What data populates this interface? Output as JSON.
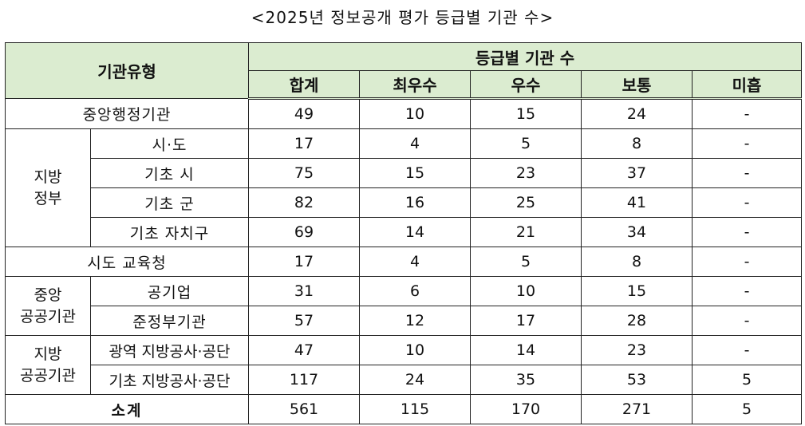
{
  "title": "<2025년 정보공개 평가 등급별 기관 수>",
  "header": {
    "type_col": "기관유형",
    "group_col": "등급별 기관 수",
    "grades": [
      "합계",
      "최우수",
      "우수",
      "보통",
      "미흡"
    ]
  },
  "rows": {
    "central_admin": {
      "label": "중앙행정기관",
      "values": [
        "49",
        "10",
        "15",
        "24",
        "-"
      ]
    },
    "local_gov": {
      "group_label": "지방\n정부",
      "items": [
        {
          "label": "시·도",
          "values": [
            "17",
            "4",
            "5",
            "8",
            "-"
          ]
        },
        {
          "label": "기초 시",
          "values": [
            "75",
            "15",
            "23",
            "37",
            "-"
          ]
        },
        {
          "label": "기초 군",
          "values": [
            "82",
            "16",
            "25",
            "41",
            "-"
          ]
        },
        {
          "label": "기초 자치구",
          "values": [
            "69",
            "14",
            "21",
            "34",
            "-"
          ]
        }
      ]
    },
    "education": {
      "label": "시도 교육청",
      "values": [
        "17",
        "4",
        "5",
        "8",
        "-"
      ]
    },
    "central_public": {
      "group_label": "중앙\n공공기관",
      "items": [
        {
          "label": "공기업",
          "values": [
            "31",
            "6",
            "10",
            "15",
            "-"
          ]
        },
        {
          "label": "준정부기관",
          "values": [
            "57",
            "12",
            "17",
            "28",
            "-"
          ]
        }
      ]
    },
    "local_public": {
      "group_label": "지방\n공공기관",
      "items": [
        {
          "label": "광역 지방공사·공단",
          "values": [
            "47",
            "10",
            "14",
            "23",
            "-"
          ]
        },
        {
          "label": "기초 지방공사·공단",
          "values": [
            "117",
            "24",
            "35",
            "53",
            "5"
          ]
        }
      ]
    },
    "total": {
      "label": "소계",
      "values": [
        "561",
        "115",
        "170",
        "271",
        "5"
      ]
    }
  }
}
